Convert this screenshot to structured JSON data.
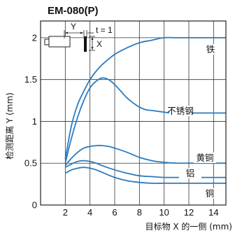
{
  "chart_data": {
    "type": "line",
    "title": "EM-080(P)",
    "xlabel": "目标物 X 的一侧 (mm)",
    "ylabel": "检测距离 Y (mm)",
    "xlim": [
      0,
      15
    ],
    "ylim": [
      0,
      2.2
    ],
    "x_ticks": [
      "2",
      "4",
      "6",
      "8",
      "10",
      "12",
      "14"
    ],
    "y_ticks": [
      "0",
      "0.5",
      "1",
      "1.5",
      "2"
    ],
    "grid": true,
    "series": [
      {
        "name": "铁",
        "color": "#2b7bbf",
        "x": [
          2,
          2.5,
          3,
          3.5,
          4,
          4.5,
          5,
          6,
          7,
          8,
          9,
          10,
          11,
          12,
          13,
          14,
          15
        ],
        "y": [
          0.55,
          0.95,
          1.2,
          1.36,
          1.5,
          1.6,
          1.68,
          1.8,
          1.88,
          1.94,
          1.97,
          2.0,
          2.0,
          2.0,
          2.0,
          2.0,
          2.0
        ]
      },
      {
        "name": "不锈钢",
        "color": "#2b7bbf",
        "x": [
          2,
          2.5,
          3,
          3.5,
          4,
          4.5,
          5,
          5.5,
          6,
          6.5,
          7,
          7.5,
          8,
          8.5,
          9,
          9.5,
          10,
          10.5,
          11,
          12,
          13,
          14,
          15
        ],
        "y": [
          0.5,
          0.8,
          1.05,
          1.25,
          1.4,
          1.48,
          1.52,
          1.5,
          1.44,
          1.36,
          1.28,
          1.22,
          1.17,
          1.14,
          1.13,
          1.12,
          1.11,
          1.1,
          1.1,
          1.1,
          1.1,
          1.1,
          1.1
        ]
      },
      {
        "name": "黄铜",
        "color": "#2b7bbf",
        "x": [
          2,
          2.5,
          3,
          3.5,
          4,
          4.5,
          5,
          5.5,
          6,
          7,
          8,
          9,
          10,
          11,
          12,
          13,
          14,
          15
        ],
        "y": [
          0.47,
          0.56,
          0.63,
          0.68,
          0.7,
          0.71,
          0.71,
          0.7,
          0.68,
          0.63,
          0.57,
          0.53,
          0.51,
          0.5,
          0.5,
          0.5,
          0.5,
          0.5
        ]
      },
      {
        "name": "铝",
        "color": "#2b7bbf",
        "x": [
          2,
          2.5,
          3,
          3.5,
          4,
          4.5,
          5,
          6,
          7,
          8,
          9,
          10,
          11,
          12,
          13,
          14,
          15
        ],
        "y": [
          0.45,
          0.49,
          0.52,
          0.53,
          0.52,
          0.5,
          0.47,
          0.42,
          0.38,
          0.35,
          0.34,
          0.33,
          0.33,
          0.33,
          0.33,
          0.33,
          0.33
        ]
      },
      {
        "name": "铜",
        "color": "#2b7bbf",
        "x": [
          2,
          2.5,
          3,
          3.5,
          4,
          4.5,
          5,
          6,
          7,
          8,
          9,
          10,
          11,
          12,
          13,
          14,
          15
        ],
        "y": [
          0.38,
          0.42,
          0.44,
          0.45,
          0.44,
          0.42,
          0.39,
          0.33,
          0.29,
          0.27,
          0.26,
          0.26,
          0.26,
          0.26,
          0.26,
          0.26,
          0.26
        ]
      }
    ]
  },
  "diagram": {
    "y_label": "Y",
    "x_label": "X",
    "t_label": "t = 1"
  }
}
